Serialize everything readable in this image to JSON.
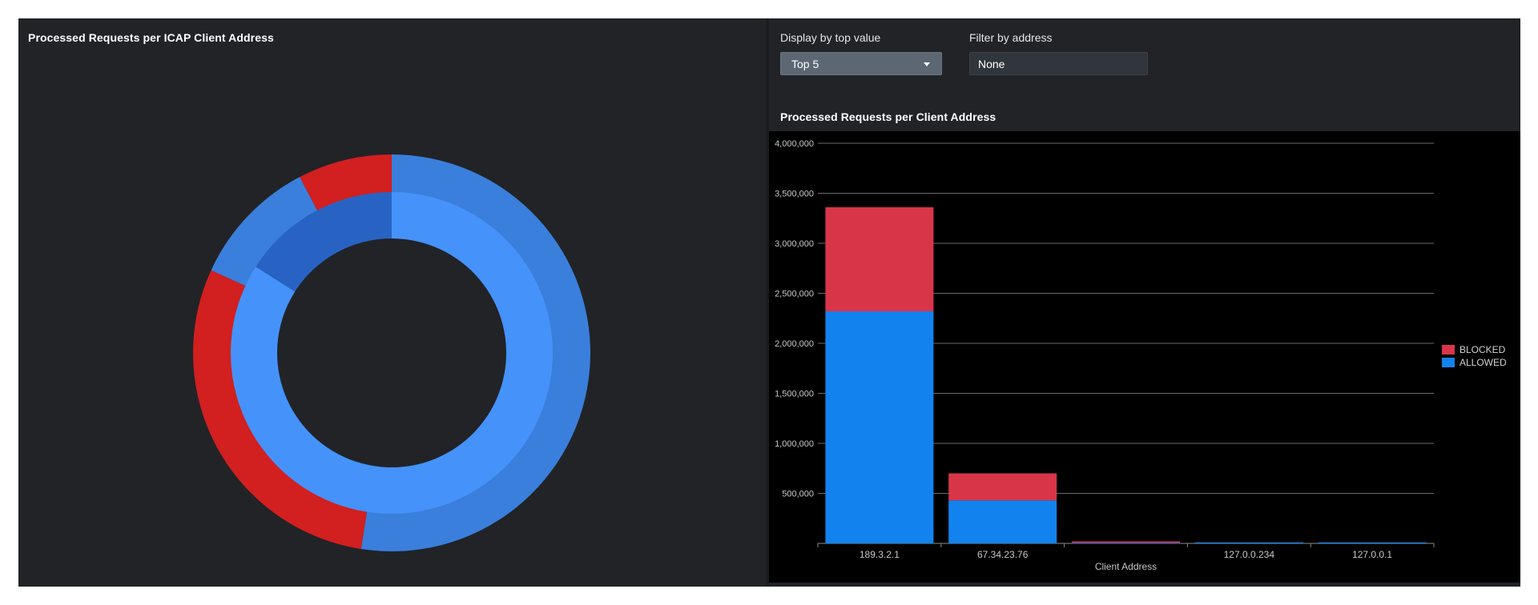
{
  "left_panel": {
    "title": "Processed Requests per ICAP Client Address"
  },
  "donut": {
    "colors": {
      "allowed_outer": "#3a7fdb",
      "allowed_inner": "#4592fb",
      "blocked": "#d21f1f",
      "inner_other": "#2863c4",
      "background": "#212327"
    },
    "outer_ring": [
      {
        "category": "allowed",
        "value": 50.0
      },
      {
        "category": "blocked",
        "value": 28.0
      },
      {
        "category": "allowed",
        "value": 10.0
      },
      {
        "category": "blocked",
        "value": 7.3
      }
    ],
    "inner_ring": [
      {
        "category": "allowed",
        "value": 84.0
      },
      {
        "category": "other",
        "value": 16.0
      }
    ]
  },
  "controls": {
    "top_value_label": "Display by top value",
    "top_value_selected": "Top 5",
    "filter_label": "Filter by address",
    "filter_value": "None",
    "filter_placeholder": "None"
  },
  "right_panel": {
    "title": "Processed Requests per Client Address"
  },
  "chart_data": {
    "type": "bar",
    "stacked": true,
    "title": "Processed Requests per Client Address",
    "xlabel": "Client Address",
    "ylabel": "",
    "ylim": [
      0,
      4000000
    ],
    "yticks": [
      500000,
      1000000,
      1500000,
      2000000,
      2500000,
      3000000,
      3500000,
      4000000
    ],
    "ytick_labels": [
      "500,000",
      "1,000,000",
      "1,500,000",
      "2,000,000",
      "2,500,000",
      "3,000,000",
      "3,500,000",
      "4,000,000"
    ],
    "categories": [
      "189.3.2.1",
      "67.34.23.76",
      "",
      "127.0.0.234",
      "127.0.0.1"
    ],
    "series": [
      {
        "name": "ALLOWED",
        "color": "#1283ee",
        "values": [
          2320000,
          430000,
          5000,
          10000,
          10000
        ]
      },
      {
        "name": "BLOCKED",
        "color": "#d93548",
        "values": [
          1040000,
          270000,
          15000,
          0,
          0
        ]
      }
    ],
    "legend": [
      "BLOCKED",
      "ALLOWED"
    ],
    "legend_position": "right",
    "grid": true
  }
}
